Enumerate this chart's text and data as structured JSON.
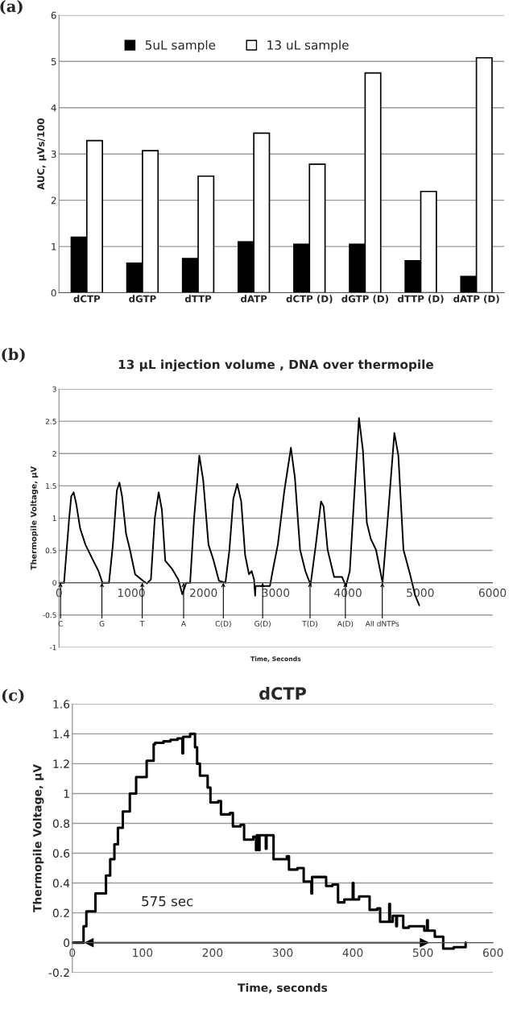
{
  "chart_data": [
    {
      "type": "bar",
      "ylabel": "AUC, μVs/100",
      "annotations": [
        "(a)"
      ],
      "categories": [
        "dCTP",
        "dGTP",
        "dTTP",
        "dATP",
        "dCTP (D)",
        "dGTP (D)",
        "dTTP (D)",
        "dATP (D)"
      ],
      "series": [
        {
          "name": "5uL sample",
          "color": "#000000",
          "values": [
            1.2,
            0.64,
            0.74,
            1.1,
            1.05,
            1.05,
            0.69,
            0.35
          ]
        },
        {
          "name": "13 uL sample",
          "color": "#ffffff",
          "values": [
            3.29,
            3.07,
            2.52,
            3.45,
            2.78,
            4.75,
            2.19,
            5.08
          ]
        }
      ],
      "ylim": [
        0,
        6
      ],
      "yticks": [
        0,
        1,
        2,
        3,
        4,
        5,
        6
      ],
      "grid": "y",
      "legend": "top"
    },
    {
      "type": "line",
      "title": "13 μL injection volume , DNA over thermopile",
      "xlabel": "Time, Seconds",
      "ylabel": "Thermopile Voltage, μV",
      "annotations": [
        "(b)",
        {
          "text": "C",
          "x": 22,
          "y": 0
        },
        {
          "text": "G",
          "x": 594,
          "y": 0
        },
        {
          "text": "T",
          "x": 1152,
          "y": 0
        },
        {
          "text": "A",
          "x": 1725,
          "y": 0
        },
        {
          "text": "C(D)",
          "x": 2275,
          "y": 0
        },
        {
          "text": "G(D)",
          "x": 2819,
          "y": 0
        },
        {
          "text": "T(D)",
          "x": 3475,
          "y": 0
        },
        {
          "text": "A(D)",
          "x": 3964,
          "y": 0
        },
        {
          "text": "All dNTPs",
          "x": 4475,
          "y": 0
        }
      ],
      "x": [
        0,
        70,
        141,
        170,
        203,
        239,
        293,
        366,
        457,
        547,
        601,
        638,
        692,
        746,
        801,
        837,
        873,
        928,
        982,
        1054,
        1163,
        1217,
        1272,
        1326,
        1380,
        1424,
        1471,
        1562,
        1652,
        1707,
        1761,
        1815,
        1870,
        1942,
        1996,
        2069,
        2141,
        2214,
        2304,
        2359,
        2413,
        2467,
        2522,
        2576,
        2630,
        2667,
        2700,
        2715,
        2721,
        2920,
        2957,
        3029,
        3120,
        3210,
        3265,
        3337,
        3410,
        3482,
        3555,
        3627,
        3663,
        3718,
        3808,
        3917,
        3971,
        4025,
        4080,
        4152,
        4207,
        4261,
        4315,
        4388,
        4479,
        4551,
        4642,
        4697,
        4768,
        4859,
        4931,
        4986
      ],
      "values": [
        0,
        0,
        1.0,
        1.34,
        1.4,
        1.22,
        0.84,
        0.59,
        0.38,
        0.18,
        0,
        0,
        0,
        0.59,
        1.43,
        1.55,
        1.34,
        0.76,
        0.51,
        0.13,
        0.03,
        -0.01,
        0.05,
        1.0,
        1.4,
        1.13,
        0.34,
        0.22,
        0.05,
        -0.18,
        0,
        0,
        1.0,
        1.97,
        1.59,
        0.59,
        0.34,
        0.03,
        0,
        0.51,
        1.3,
        1.53,
        1.26,
        0.43,
        0.13,
        0.18,
        0.05,
        -0.2,
        -0.05,
        -0.05,
        0.18,
        0.59,
        1.43,
        2.09,
        1.63,
        0.51,
        0.18,
        -0.03,
        0.59,
        1.26,
        1.18,
        0.51,
        0.09,
        0.09,
        -0.05,
        0.18,
        1.22,
        2.55,
        2.05,
        0.93,
        0.68,
        0.51,
        0,
        1.0,
        2.32,
        1.97,
        0.51,
        0.13,
        -0.2,
        -0.35
      ],
      "color": "#000000",
      "xlim": [
        0,
        6000
      ],
      "xticks": [
        0,
        1000,
        2000,
        3000,
        4000,
        5000,
        6000
      ],
      "ylim": [
        -1,
        3
      ],
      "yticks": [
        -1,
        -0.5,
        0,
        0.5,
        1,
        1.5,
        2,
        2.5,
        3
      ],
      "grid": "y"
    },
    {
      "type": "step",
      "title": "dCTP",
      "xlabel": "Time, seconds",
      "ylabel": "Thermopile Voltage, μV",
      "annotations": [
        "(c)"
      ],
      "series": [
        {
          "color": "#000000",
          "x": [
            0,
            16,
            20,
            33,
            48,
            54,
            60,
            65,
            72,
            82,
            91,
            106,
            116,
            118,
            130,
            140,
            150,
            157,
            158,
            168,
            175,
            178,
            182,
            193,
            197,
            208,
            212,
            225,
            229,
            240,
            245,
            258,
            262,
            263,
            266,
            267,
            276,
            277,
            287,
            306,
            309,
            321,
            330,
            341,
            342,
            362,
            371,
            379,
            388,
            400,
            401,
            409,
            424,
            435,
            439,
            452,
            453,
            457,
            462,
            463,
            472,
            480,
            502,
            506,
            507,
            517,
            529,
            544,
            561
          ],
          "values": [
            0,
            0.11,
            0.21,
            0.33,
            0.45,
            0.56,
            0.66,
            0.77,
            0.88,
            1.0,
            1.11,
            1.22,
            1.33,
            1.34,
            1.35,
            1.36,
            1.37,
            1.27,
            1.38,
            1.4,
            1.31,
            1.2,
            1.12,
            1.04,
            0.94,
            0.95,
            0.86,
            0.87,
            0.78,
            0.79,
            0.69,
            0.71,
            0.62,
            0.72,
            0.62,
            0.72,
            0.63,
            0.72,
            0.56,
            0.58,
            0.49,
            0.5,
            0.41,
            0.33,
            0.44,
            0.38,
            0.39,
            0.27,
            0.29,
            0.4,
            0.29,
            0.31,
            0.22,
            0.23,
            0.14,
            0.26,
            0.14,
            0.18,
            0.11,
            0.18,
            0.1,
            0.11,
            0.08,
            0.15,
            0.08,
            0.04,
            -0.04,
            -0.03,
            0.0
          ]
        },
        {
          "type": "line",
          "name": "575 sec",
          "color": "#000000",
          "x": [
            24,
            502
          ],
          "values": [
            0,
            0
          ],
          "marker": "triangle"
        }
      ],
      "xlim": [
        0,
        600
      ],
      "xticks": [
        0,
        100,
        200,
        300,
        400,
        500,
        600
      ],
      "ylim": [
        -0.2,
        1.6
      ],
      "yticks": [
        -0.2,
        0,
        0.2,
        0.4,
        0.6,
        0.8,
        1,
        1.2,
        1.4,
        1.6
      ],
      "grid": "y"
    }
  ]
}
